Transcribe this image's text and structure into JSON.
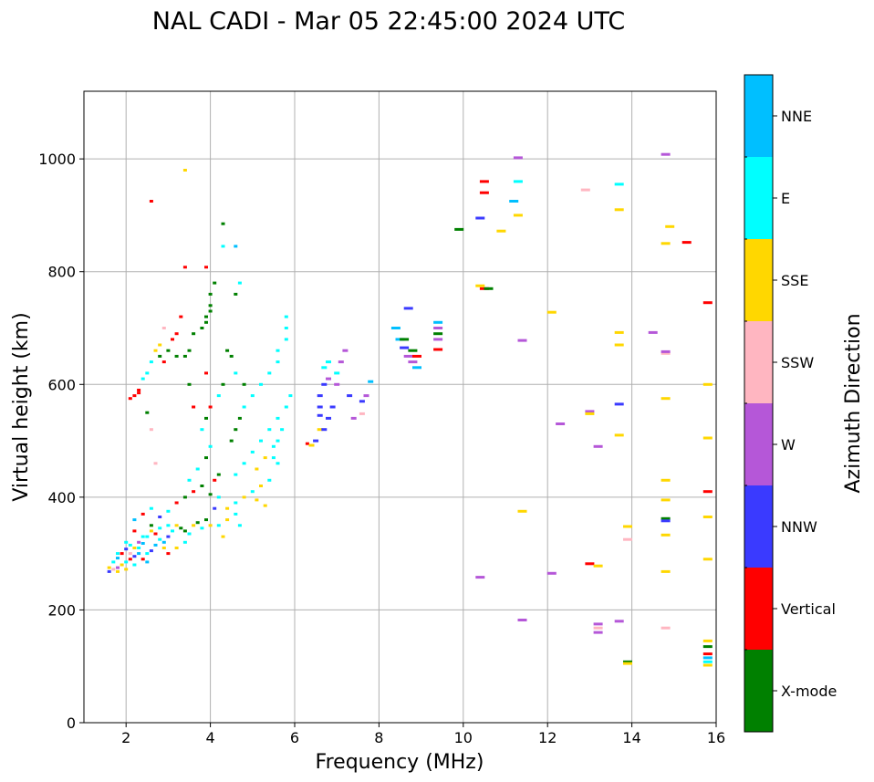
{
  "chart_data": {
    "type": "scatter",
    "title": "NAL CADI - Mar 05 22:45:00 2024 UTC",
    "xlabel": "Frequency (MHz)",
    "ylabel": "Virtual height (km)",
    "xlim": [
      1,
      16
    ],
    "ylim": [
      0,
      1120
    ],
    "xticks": [
      2,
      4,
      6,
      8,
      10,
      12,
      14,
      16
    ],
    "yticks": [
      0,
      200,
      400,
      600,
      800,
      1000
    ],
    "grid": true,
    "colorbar": {
      "label": "Azimuth Direction",
      "categories": [
        {
          "name": "X-mode",
          "color": "#008000"
        },
        {
          "name": "Vertical",
          "color": "#ff0000"
        },
        {
          "name": "NNW",
          "color": "#3a3aff"
        },
        {
          "name": "W",
          "color": "#b557d8"
        },
        {
          "name": "SSW",
          "color": "#ffb6c1"
        },
        {
          "name": "SSE",
          "color": "#ffd700"
        },
        {
          "name": "E",
          "color": "#00ffff"
        },
        {
          "name": "NNE",
          "color": "#00bfff"
        }
      ]
    },
    "points": [
      [
        1.6,
        268,
        2
      ],
      [
        1.7,
        272,
        4
      ],
      [
        1.8,
        275,
        3
      ],
      [
        1.9,
        280,
        5
      ],
      [
        2.0,
        285,
        6
      ],
      [
        2.1,
        290,
        1
      ],
      [
        2.2,
        295,
        2
      ],
      [
        2.3,
        300,
        7
      ],
      [
        1.7,
        285,
        6
      ],
      [
        1.8,
        292,
        7
      ],
      [
        1.9,
        300,
        1
      ],
      [
        2.0,
        308,
        2
      ],
      [
        2.1,
        315,
        6
      ],
      [
        2.2,
        310,
        5
      ],
      [
        2.3,
        320,
        3
      ],
      [
        2.4,
        318,
        7
      ],
      [
        1.6,
        275,
        5
      ],
      [
        1.8,
        268,
        5
      ],
      [
        2.0,
        272,
        5
      ],
      [
        2.2,
        280,
        6
      ],
      [
        2.4,
        290,
        1
      ],
      [
        2.5,
        300,
        6
      ],
      [
        2.6,
        305,
        2
      ],
      [
        2.7,
        315,
        7
      ],
      [
        2.5,
        330,
        6
      ],
      [
        2.6,
        340,
        5
      ],
      [
        2.7,
        335,
        1
      ],
      [
        2.8,
        325,
        6
      ],
      [
        2.9,
        320,
        7
      ],
      [
        3.0,
        330,
        2
      ],
      [
        3.1,
        340,
        6
      ],
      [
        3.2,
        350,
        5
      ],
      [
        3.3,
        345,
        0
      ],
      [
        3.4,
        340,
        0
      ],
      [
        3.5,
        335,
        6
      ],
      [
        3.6,
        350,
        5
      ],
      [
        3.7,
        355,
        0
      ],
      [
        3.8,
        345,
        6
      ],
      [
        3.9,
        360,
        0
      ],
      [
        4.0,
        350,
        5
      ],
      [
        2.2,
        360,
        7
      ],
      [
        2.4,
        370,
        1
      ],
      [
        2.6,
        380,
        6
      ],
      [
        2.8,
        365,
        2
      ],
      [
        3.0,
        375,
        6
      ],
      [
        3.2,
        390,
        1
      ],
      [
        3.4,
        400,
        0
      ],
      [
        3.6,
        410,
        1
      ],
      [
        3.8,
        420,
        0
      ],
      [
        4.0,
        405,
        0
      ],
      [
        4.1,
        430,
        1
      ],
      [
        4.2,
        440,
        0
      ],
      [
        3.5,
        430,
        6
      ],
      [
        3.7,
        450,
        6
      ],
      [
        3.9,
        470,
        0
      ],
      [
        4.0,
        490,
        6
      ],
      [
        3.8,
        520,
        6
      ],
      [
        3.9,
        540,
        0
      ],
      [
        4.0,
        560,
        1
      ],
      [
        4.2,
        580,
        6
      ],
      [
        4.3,
        600,
        0
      ],
      [
        3.6,
        560,
        1
      ],
      [
        3.5,
        600,
        0
      ],
      [
        3.9,
        620,
        1
      ],
      [
        4.4,
        380,
        5
      ],
      [
        4.6,
        390,
        6
      ],
      [
        4.8,
        400,
        5
      ],
      [
        5.0,
        410,
        6
      ],
      [
        5.2,
        420,
        5
      ],
      [
        5.4,
        430,
        6
      ],
      [
        5.1,
        395,
        5
      ],
      [
        5.3,
        385,
        5
      ],
      [
        4.6,
        440,
        6
      ],
      [
        4.8,
        460,
        6
      ],
      [
        5.0,
        480,
        6
      ],
      [
        5.2,
        500,
        6
      ],
      [
        5.4,
        520,
        6
      ],
      [
        5.6,
        540,
        6
      ],
      [
        5.5,
        470,
        6
      ],
      [
        5.6,
        460,
        6
      ],
      [
        4.5,
        500,
        0
      ],
      [
        4.6,
        520,
        0
      ],
      [
        4.7,
        540,
        0
      ],
      [
        4.8,
        560,
        6
      ],
      [
        5.0,
        580,
        6
      ],
      [
        5.2,
        600,
        6
      ],
      [
        5.4,
        620,
        6
      ],
      [
        5.6,
        640,
        6
      ],
      [
        4.8,
        600,
        0
      ],
      [
        4.6,
        620,
        6
      ],
      [
        4.5,
        650,
        0
      ],
      [
        4.4,
        660,
        0
      ],
      [
        5.6,
        660,
        6
      ],
      [
        5.8,
        680,
        6
      ],
      [
        5.8,
        720,
        6
      ],
      [
        5.8,
        700,
        6
      ],
      [
        3.6,
        690,
        0
      ],
      [
        3.8,
        700,
        0
      ],
      [
        3.9,
        720,
        0
      ],
      [
        4.0,
        740,
        0
      ],
      [
        4.0,
        760,
        0
      ],
      [
        4.1,
        780,
        0
      ],
      [
        4.0,
        730,
        0
      ],
      [
        3.9,
        710,
        0
      ],
      [
        3.2,
        690,
        1
      ],
      [
        3.3,
        720,
        1
      ],
      [
        3.1,
        680,
        1
      ],
      [
        3.0,
        660,
        0
      ],
      [
        2.9,
        640,
        1
      ],
      [
        3.4,
        650,
        0
      ],
      [
        3.5,
        660,
        0
      ],
      [
        3.2,
        650,
        0
      ],
      [
        2.7,
        660,
        5
      ],
      [
        2.6,
        640,
        6
      ],
      [
        2.5,
        620,
        6
      ],
      [
        2.4,
        610,
        6
      ],
      [
        2.8,
        650,
        0
      ],
      [
        2.9,
        700,
        4
      ],
      [
        2.8,
        670,
        5
      ],
      [
        2.3,
        590,
        1
      ],
      [
        2.2,
        580,
        1
      ],
      [
        2.1,
        575,
        1
      ],
      [
        2.3,
        585,
        1
      ],
      [
        2.5,
        550,
        0
      ],
      [
        2.6,
        520,
        4
      ],
      [
        2.7,
        460,
        4
      ],
      [
        2.6,
        925,
        1
      ],
      [
        3.4,
        980,
        5
      ],
      [
        3.4,
        808,
        1
      ],
      [
        3.9,
        808,
        1
      ],
      [
        4.3,
        885,
        0
      ],
      [
        4.3,
        845,
        6
      ],
      [
        4.6,
        845,
        7
      ],
      [
        4.7,
        780,
        6
      ],
      [
        4.6,
        760,
        0
      ],
      [
        6.3,
        495,
        1
      ],
      [
        6.4,
        492,
        5
      ],
      [
        6.6,
        520,
        5
      ],
      [
        6.8,
        540,
        2
      ],
      [
        6.9,
        560,
        2
      ],
      [
        6.6,
        560,
        2
      ],
      [
        6.6,
        580,
        2
      ],
      [
        6.7,
        600,
        2
      ],
      [
        6.8,
        610,
        3
      ],
      [
        7.0,
        620,
        6
      ],
      [
        7.1,
        640,
        3
      ],
      [
        7.2,
        660,
        3
      ],
      [
        6.7,
        630,
        6
      ],
      [
        6.8,
        640,
        6
      ],
      [
        7.0,
        600,
        3
      ],
      [
        7.3,
        580,
        2
      ],
      [
        7.6,
        570,
        2
      ],
      [
        7.7,
        580,
        3
      ],
      [
        7.8,
        605,
        7
      ],
      [
        7.4,
        540,
        3
      ],
      [
        7.6,
        548,
        4
      ],
      [
        6.6,
        545,
        2
      ],
      [
        6.7,
        520,
        2
      ],
      [
        6.5,
        500,
        2
      ],
      [
        8.4,
        700,
        7
      ],
      [
        8.5,
        680,
        7
      ],
      [
        8.6,
        665,
        2
      ],
      [
        8.7,
        650,
        3
      ],
      [
        8.8,
        640,
        3
      ],
      [
        8.9,
        630,
        7
      ],
      [
        8.8,
        660,
        0
      ],
      [
        8.7,
        735,
        2
      ],
      [
        8.6,
        680,
        0
      ],
      [
        8.9,
        650,
        1
      ],
      [
        9.4,
        710,
        7
      ],
      [
        9.4,
        700,
        3
      ],
      [
        9.4,
        690,
        0
      ],
      [
        9.4,
        680,
        3
      ],
      [
        9.4,
        662,
        1
      ],
      [
        9.9,
        875,
        0
      ],
      [
        10.4,
        895,
        2
      ],
      [
        10.5,
        960,
        1
      ],
      [
        10.5,
        940,
        1
      ],
      [
        10.5,
        770,
        1
      ],
      [
        10.6,
        770,
        0
      ],
      [
        10.4,
        775,
        5
      ],
      [
        10.4,
        258,
        3
      ],
      [
        10.9,
        872,
        5
      ],
      [
        11.2,
        925,
        7
      ],
      [
        11.3,
        900,
        5
      ],
      [
        11.3,
        960,
        6
      ],
      [
        11.3,
        1002,
        3
      ],
      [
        11.4,
        678,
        3
      ],
      [
        11.4,
        375,
        5
      ],
      [
        11.4,
        182,
        3
      ],
      [
        12.1,
        728,
        5
      ],
      [
        12.1,
        265,
        3
      ],
      [
        12.3,
        530,
        3
      ],
      [
        12.9,
        945,
        4
      ],
      [
        13.0,
        552,
        3
      ],
      [
        13.0,
        548,
        5
      ],
      [
        13.0,
        282,
        1
      ],
      [
        13.2,
        278,
        5
      ],
      [
        13.2,
        490,
        3
      ],
      [
        13.2,
        175,
        3
      ],
      [
        13.2,
        168,
        4
      ],
      [
        13.2,
        160,
        3
      ],
      [
        13.7,
        955,
        6
      ],
      [
        13.7,
        910,
        5
      ],
      [
        13.7,
        692,
        5
      ],
      [
        13.7,
        670,
        5
      ],
      [
        13.7,
        565,
        2
      ],
      [
        13.7,
        510,
        5
      ],
      [
        13.7,
        180,
        3
      ],
      [
        13.9,
        348,
        5
      ],
      [
        13.9,
        325,
        4
      ],
      [
        13.9,
        108,
        0
      ],
      [
        13.9,
        105,
        5
      ],
      [
        14.5,
        692,
        3
      ],
      [
        14.8,
        1008,
        3
      ],
      [
        14.8,
        850,
        5
      ],
      [
        14.9,
        880,
        5
      ],
      [
        14.8,
        655,
        4
      ],
      [
        14.8,
        658,
        3
      ],
      [
        14.8,
        575,
        5
      ],
      [
        14.8,
        430,
        5
      ],
      [
        14.8,
        395,
        5
      ],
      [
        14.8,
        362,
        0
      ],
      [
        14.8,
        358,
        2
      ],
      [
        14.8,
        333,
        5
      ],
      [
        14.8,
        268,
        5
      ],
      [
        14.8,
        168,
        4
      ],
      [
        15.3,
        852,
        1
      ],
      [
        15.8,
        745,
        1
      ],
      [
        15.8,
        600,
        5
      ],
      [
        15.8,
        505,
        5
      ],
      [
        15.8,
        410,
        1
      ],
      [
        15.8,
        365,
        5
      ],
      [
        15.8,
        290,
        5
      ],
      [
        15.8,
        145,
        5
      ],
      [
        15.8,
        135,
        0
      ],
      [
        15.8,
        122,
        1
      ],
      [
        15.8,
        115,
        7
      ],
      [
        15.8,
        108,
        6
      ],
      [
        15.8,
        102,
        5
      ],
      [
        1.8,
        300,
        6
      ],
      [
        2.0,
        320,
        6
      ],
      [
        2.2,
        340,
        1
      ],
      [
        2.4,
        330,
        6
      ],
      [
        2.6,
        350,
        0
      ],
      [
        2.8,
        345,
        6
      ],
      [
        3.0,
        350,
        6
      ],
      [
        3.0,
        300,
        1
      ],
      [
        3.2,
        310,
        5
      ],
      [
        3.4,
        320,
        6
      ],
      [
        2.9,
        310,
        5
      ],
      [
        2.1,
        300,
        4
      ],
      [
        2.3,
        310,
        6
      ],
      [
        2.5,
        285,
        7
      ],
      [
        4.2,
        350,
        6
      ],
      [
        4.4,
        360,
        5
      ],
      [
        4.6,
        370,
        6
      ],
      [
        4.3,
        330,
        5
      ],
      [
        4.7,
        350,
        6
      ],
      [
        4.1,
        380,
        2
      ],
      [
        4.2,
        400,
        6
      ],
      [
        5.8,
        560,
        6
      ],
      [
        5.9,
        580,
        6
      ],
      [
        5.7,
        520,
        6
      ],
      [
        5.6,
        500,
        6
      ],
      [
        5.5,
        490,
        6
      ],
      [
        5.3,
        470,
        5
      ],
      [
        5.1,
        450,
        5
      ]
    ]
  }
}
